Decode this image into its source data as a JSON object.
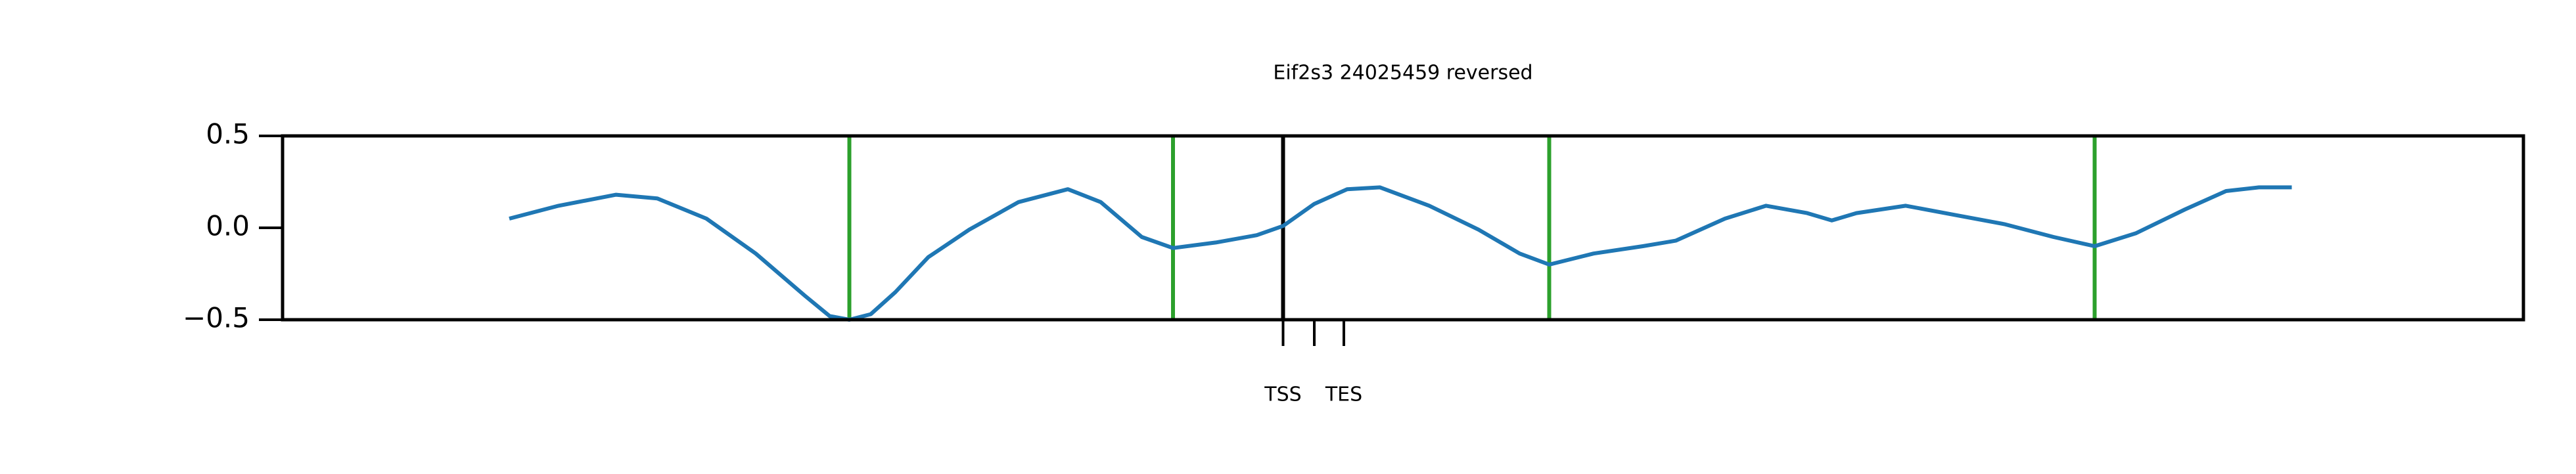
{
  "chart_data": {
    "type": "line",
    "title": "Eif2s3 24025459 reversed",
    "x": [
      138,
      168,
      203,
      228,
      258,
      288,
      318,
      333,
      345,
      358,
      373,
      393,
      418,
      448,
      478,
      498,
      523,
      542,
      568,
      593,
      609,
      628,
      648,
      668,
      698,
      728,
      753,
      771,
      798,
      828,
      848,
      878,
      903,
      928,
      943,
      958,
      988,
      1018,
      1048,
      1078,
      1103,
      1128,
      1158,
      1183,
      1203,
      1223
    ],
    "values": [
      0.05,
      0.12,
      0.18,
      0.16,
      0.05,
      -0.14,
      -0.37,
      -0.48,
      -0.5,
      -0.47,
      -0.35,
      -0.16,
      -0.01,
      0.14,
      0.21,
      0.14,
      -0.05,
      -0.11,
      -0.08,
      -0.04,
      0.01,
      0.13,
      0.21,
      0.22,
      0.12,
      -0.01,
      -0.14,
      -0.2,
      -0.14,
      -0.1,
      -0.07,
      0.05,
      0.12,
      0.08,
      0.04,
      0.08,
      0.12,
      0.07,
      0.02,
      -0.05,
      -0.1,
      -0.03,
      0.1,
      0.2,
      0.22,
      0.22
    ],
    "color": "#1f77b4",
    "vlines": [
      {
        "x": 345,
        "color": "#2ca02c"
      },
      {
        "x": 542,
        "color": "#2ca02c"
      },
      {
        "x": 609,
        "color": "#000000"
      },
      {
        "x": 771,
        "color": "#2ca02c"
      },
      {
        "x": 1103,
        "color": "#2ca02c"
      }
    ],
    "xlim": [
      0,
      1364
    ],
    "xticks": [
      {
        "value": 609,
        "label": "TSS"
      },
      {
        "value": 628,
        "label": null
      },
      {
        "value": 646,
        "label": "TES"
      }
    ],
    "ylim": [
      -0.5,
      0.5
    ],
    "yticks": [
      {
        "value": -0.5,
        "label": "−0.5"
      },
      {
        "value": 0,
        "label": "0.0"
      },
      0.5
    ],
    "grid": false
  }
}
